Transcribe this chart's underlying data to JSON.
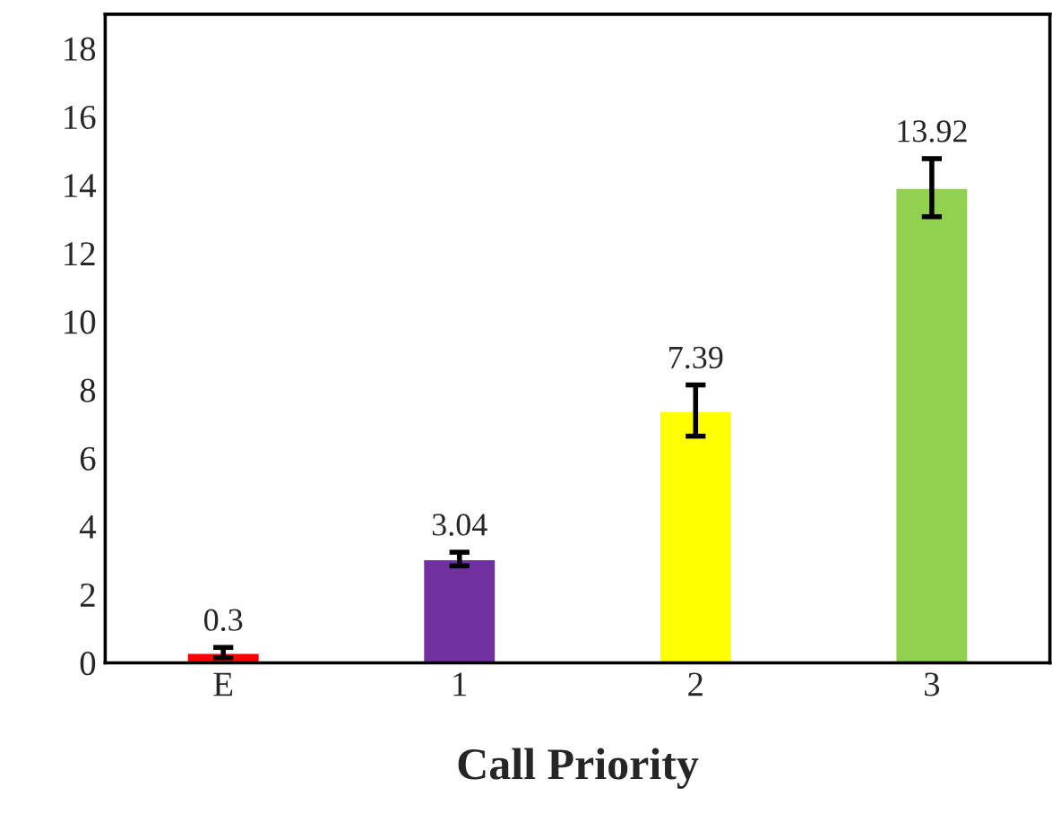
{
  "chart_data": {
    "type": "bar",
    "xlabel": "Call Priority",
    "categories": [
      "E",
      "1",
      "2",
      "3"
    ],
    "values": [
      0.3,
      3.04,
      7.39,
      13.92
    ],
    "colors": [
      "#ff0000",
      "#7030a0",
      "#ffff00",
      "#92d050"
    ],
    "errors": [
      0.15,
      0.2,
      0.75,
      0.85
    ],
    "ylim": [
      0,
      19
    ],
    "yticks": [
      0,
      2,
      4,
      6,
      8,
      10,
      12,
      14,
      16,
      18
    ],
    "data_labels": true,
    "grid": false
  }
}
